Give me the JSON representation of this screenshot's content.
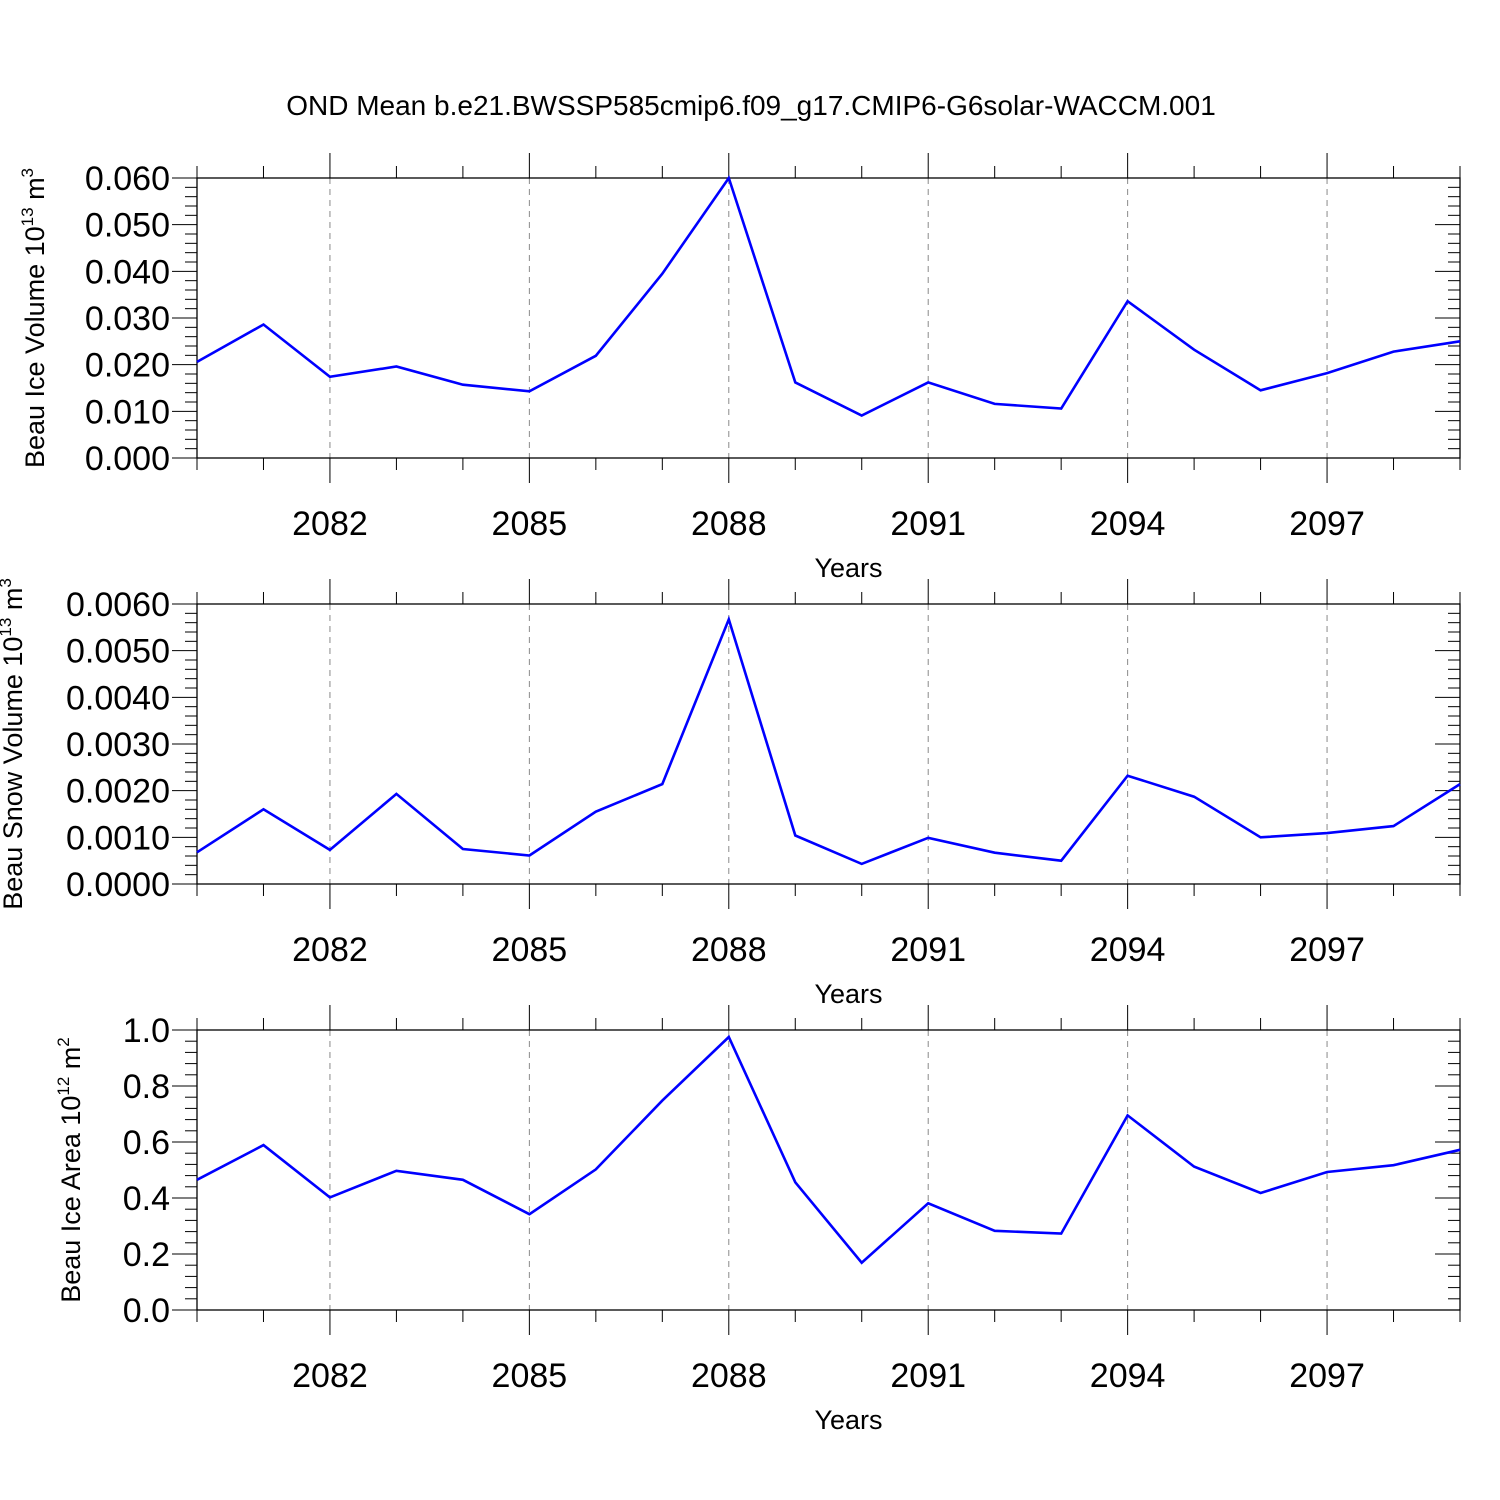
{
  "title": "OND Mean b.e21.BWSSP585cmip6.f09_g17.CMIP6-G6solar-WACCM.001",
  "line_color": "#0000ff",
  "chart_data": [
    {
      "type": "line",
      "xlabel": "Years",
      "ylabel": {
        "text": "Beau Ice Volume 10",
        "sup": "13",
        "unit": " m",
        "unit_sup": "3"
      },
      "x": [
        2080,
        2081,
        2082,
        2083,
        2084,
        2085,
        2086,
        2087,
        2088,
        2089,
        2090,
        2091,
        2092,
        2093,
        2094,
        2095,
        2096,
        2097,
        2098,
        2099
      ],
      "series": [
        {
          "values": [
            0.0206,
            0.0286,
            0.0174,
            0.0196,
            0.0157,
            0.0143,
            0.0219,
            0.0395,
            0.06,
            0.0162,
            0.0091,
            0.0162,
            0.0116,
            0.0106,
            0.0336,
            0.0232,
            0.0145,
            0.0182,
            0.0228,
            0.025
          ]
        }
      ],
      "xlim": [
        2080,
        2099
      ],
      "ylim": [
        0,
        0.06
      ],
      "yticks": [
        0,
        0.01,
        0.02,
        0.03,
        0.04,
        0.05,
        0.06
      ],
      "ytick_labels": [
        "0.000",
        "0.010",
        "0.020",
        "0.030",
        "0.040",
        "0.050",
        "0.060"
      ],
      "xticks": [
        2082,
        2085,
        2088,
        2091,
        2094,
        2097
      ],
      "xtick_labels": [
        "2082",
        "2085",
        "2088",
        "2091",
        "2094",
        "2097"
      ],
      "grid": "vertical dashed at major x ticks"
    },
    {
      "type": "line",
      "xlabel": "Years",
      "ylabel": {
        "text": "Beau Snow Volume 10",
        "sup": "13",
        "unit": " m",
        "unit_sup": "3"
      },
      "x": [
        2080,
        2081,
        2082,
        2083,
        2084,
        2085,
        2086,
        2087,
        2088,
        2089,
        2090,
        2091,
        2092,
        2093,
        2094,
        2095,
        2096,
        2097,
        2098,
        2099
      ],
      "series": [
        {
          "values": [
            0.00068,
            0.0016,
            0.00073,
            0.00193,
            0.00075,
            0.00061,
            0.00155,
            0.00214,
            0.00567,
            0.00104,
            0.00043,
            0.00099,
            0.00067,
            0.0005,
            0.00232,
            0.00187,
            0.001,
            0.00109,
            0.00124,
            0.00214
          ]
        }
      ],
      "xlim": [
        2080,
        2099
      ],
      "ylim": [
        0,
        0.006
      ],
      "yticks": [
        0,
        0.001,
        0.002,
        0.003,
        0.004,
        0.005,
        0.006
      ],
      "ytick_labels": [
        "0.0000",
        "0.0010",
        "0.0020",
        "0.0030",
        "0.0040",
        "0.0050",
        "0.0060"
      ],
      "xticks": [
        2082,
        2085,
        2088,
        2091,
        2094,
        2097
      ],
      "xtick_labels": [
        "2082",
        "2085",
        "2088",
        "2091",
        "2094",
        "2097"
      ],
      "grid": "vertical dashed at major x ticks"
    },
    {
      "type": "line",
      "xlabel": "Years",
      "ylabel": {
        "text": "Beau Ice Area 10",
        "sup": "12",
        "unit": " m",
        "unit_sup": "2"
      },
      "x": [
        2080,
        2081,
        2082,
        2083,
        2084,
        2085,
        2086,
        2087,
        2088,
        2089,
        2090,
        2091,
        2092,
        2093,
        2094,
        2095,
        2096,
        2097,
        2098,
        2099
      ],
      "series": [
        {
          "values": [
            0.465,
            0.589,
            0.402,
            0.497,
            0.465,
            0.342,
            0.502,
            0.748,
            0.975,
            0.456,
            0.169,
            0.381,
            0.283,
            0.273,
            0.695,
            0.512,
            0.418,
            0.493,
            0.517,
            0.572
          ]
        }
      ],
      "xlim": [
        2080,
        2099
      ],
      "ylim": [
        0,
        1.0
      ],
      "yticks": [
        0,
        0.2,
        0.4,
        0.6,
        0.8,
        1.0
      ],
      "ytick_labels": [
        "0.0",
        "0.2",
        "0.4",
        "0.6",
        "0.8",
        "1.0"
      ],
      "xticks": [
        2082,
        2085,
        2088,
        2091,
        2094,
        2097
      ],
      "xtick_labels": [
        "2082",
        "2085",
        "2088",
        "2091",
        "2094",
        "2097"
      ],
      "grid": "vertical dashed at major x ticks"
    }
  ]
}
